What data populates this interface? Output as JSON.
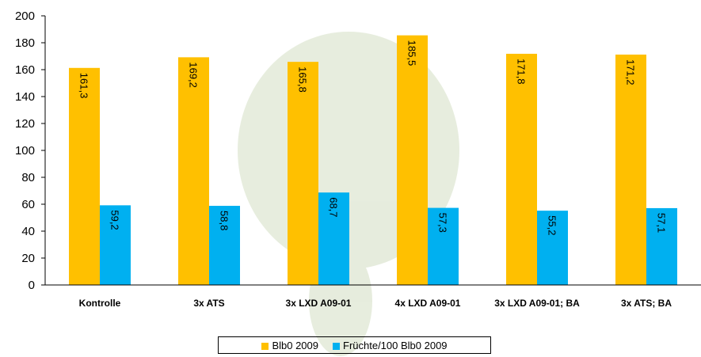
{
  "chart_data": {
    "type": "bar",
    "categories": [
      "Kontrolle",
      "3x ATS",
      "3x LXD A09-01",
      "4x LXD A09-01",
      "3x LXD A09-01; BA",
      "3x ATS; BA"
    ],
    "series": [
      {
        "name": "Blb0 2009",
        "color": "#ffc000",
        "values": [
          161.3,
          169.2,
          165.8,
          185.5,
          171.8,
          171.2
        ],
        "value_labels": [
          "161,3",
          "169,2",
          "165,8",
          "185,5",
          "171,8",
          "171,2"
        ]
      },
      {
        "name": "Früchte/100 Blb0 2009",
        "color": "#00b0f0",
        "values": [
          59.2,
          58.8,
          68.7,
          57.3,
          55.2,
          57.1
        ],
        "value_labels": [
          "59,2",
          "58,8",
          "68,7",
          "57,3",
          "55,2",
          "57,1"
        ]
      }
    ],
    "ylim": [
      0,
      200
    ],
    "yticks": [
      0,
      20,
      40,
      60,
      80,
      100,
      120,
      140,
      160,
      180,
      200
    ]
  }
}
